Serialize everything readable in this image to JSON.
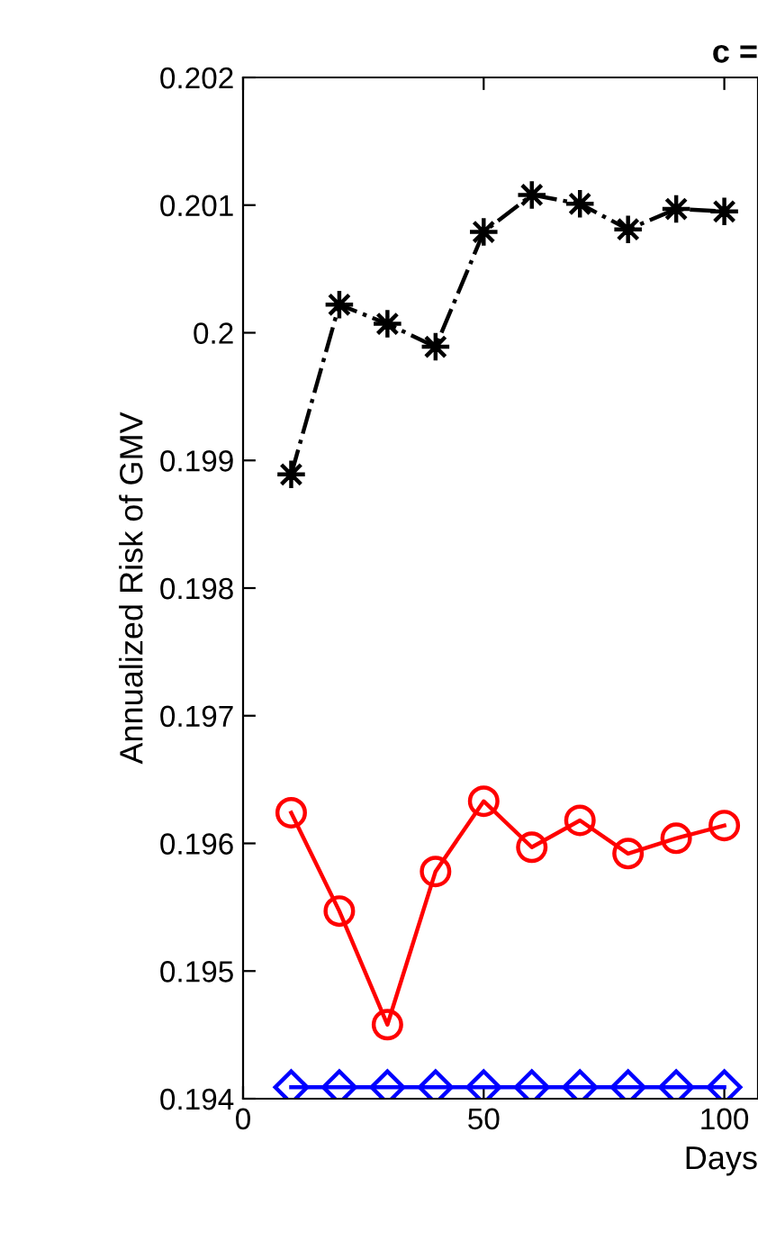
{
  "chart_data": {
    "type": "line",
    "title": "c =",
    "xlabel": "Days",
    "ylabel": "Annualized Risk of GMV",
    "x": [
      10,
      20,
      30,
      40,
      50,
      60,
      70,
      80,
      90,
      100
    ],
    "series": [
      {
        "color": "#000000",
        "marker": "star",
        "line_style": "dashdot",
        "values": [
          0.19889,
          0.20022,
          0.20007,
          0.19989,
          0.20079,
          0.20108,
          0.20101,
          0.20081,
          0.20097,
          0.20095
        ]
      },
      {
        "color": "#ff0000",
        "marker": "circle",
        "line_style": "solid",
        "values": [
          0.19624,
          0.19547,
          0.19458,
          0.19578,
          0.19633,
          0.19597,
          0.19618,
          0.19592,
          0.19604,
          0.19614
        ]
      },
      {
        "color": "#0000ff",
        "marker": "diamond",
        "line_style": "solid",
        "values": [
          0.19409,
          0.19409,
          0.19409,
          0.19409,
          0.19409,
          0.19409,
          0.19409,
          0.19409,
          0.19409,
          0.19409
        ]
      }
    ],
    "xlim": [
      0,
      107
    ],
    "xticks": [
      0,
      50,
      100
    ],
    "ylim": [
      0.194,
      0.202
    ],
    "yticks": [
      0.194,
      0.195,
      0.196,
      0.197,
      0.198,
      0.199,
      {
        "value": 0.2,
        "label": "0.2"
      },
      0.201,
      0.202
    ],
    "grid": false,
    "legend": false
  }
}
